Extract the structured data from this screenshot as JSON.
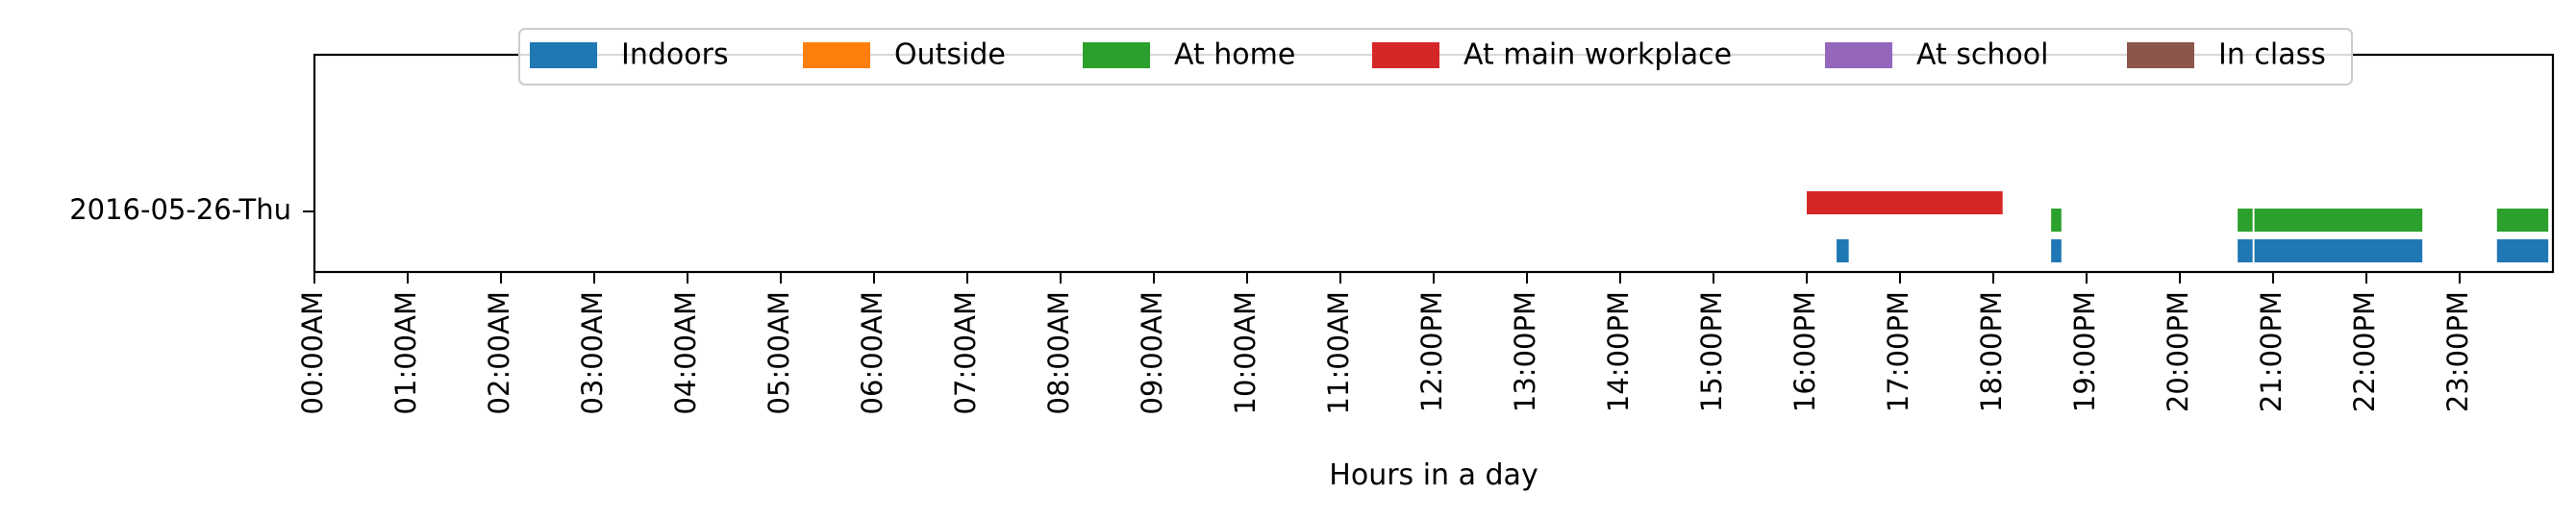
{
  "chart_data": {
    "type": "timeline",
    "xlabel": "Hours in a day",
    "ylabel": "",
    "title": "",
    "xlim": [
      0,
      24
    ],
    "x_ticks": [
      "00:00AM",
      "01:00AM",
      "02:00AM",
      "03:00AM",
      "04:00AM",
      "05:00AM",
      "06:00AM",
      "07:00AM",
      "08:00AM",
      "09:00AM",
      "10:00AM",
      "11:00AM",
      "12:00PM",
      "13:00PM",
      "14:00PM",
      "15:00PM",
      "16:00PM",
      "17:00PM",
      "18:00PM",
      "19:00PM",
      "20:00PM",
      "21:00PM",
      "22:00PM",
      "23:00PM"
    ],
    "y_categories": [
      "2016-05-26-Thu"
    ],
    "legend_position": "top-center",
    "grid": false,
    "series": [
      {
        "name": "Indoors",
        "color": "#1f77b4",
        "intervals": [
          [
            16.32,
            16.45
          ],
          [
            18.62,
            18.73
          ],
          [
            20.62,
            20.78
          ],
          [
            20.8,
            22.6
          ],
          [
            23.4,
            23.95
          ]
        ]
      },
      {
        "name": "Outside",
        "color": "#ff7f0e",
        "intervals": []
      },
      {
        "name": "At home",
        "color": "#2ca02c",
        "intervals": [
          [
            18.62,
            18.73
          ],
          [
            20.62,
            20.78
          ],
          [
            20.8,
            22.6
          ],
          [
            23.4,
            23.95
          ]
        ]
      },
      {
        "name": "At main workplace",
        "color": "#d62728",
        "intervals": [
          [
            16.0,
            18.1
          ]
        ]
      },
      {
        "name": "At school",
        "color": "#9467bd",
        "intervals": []
      },
      {
        "name": "In class",
        "color": "#8c564b",
        "intervals": []
      }
    ]
  }
}
